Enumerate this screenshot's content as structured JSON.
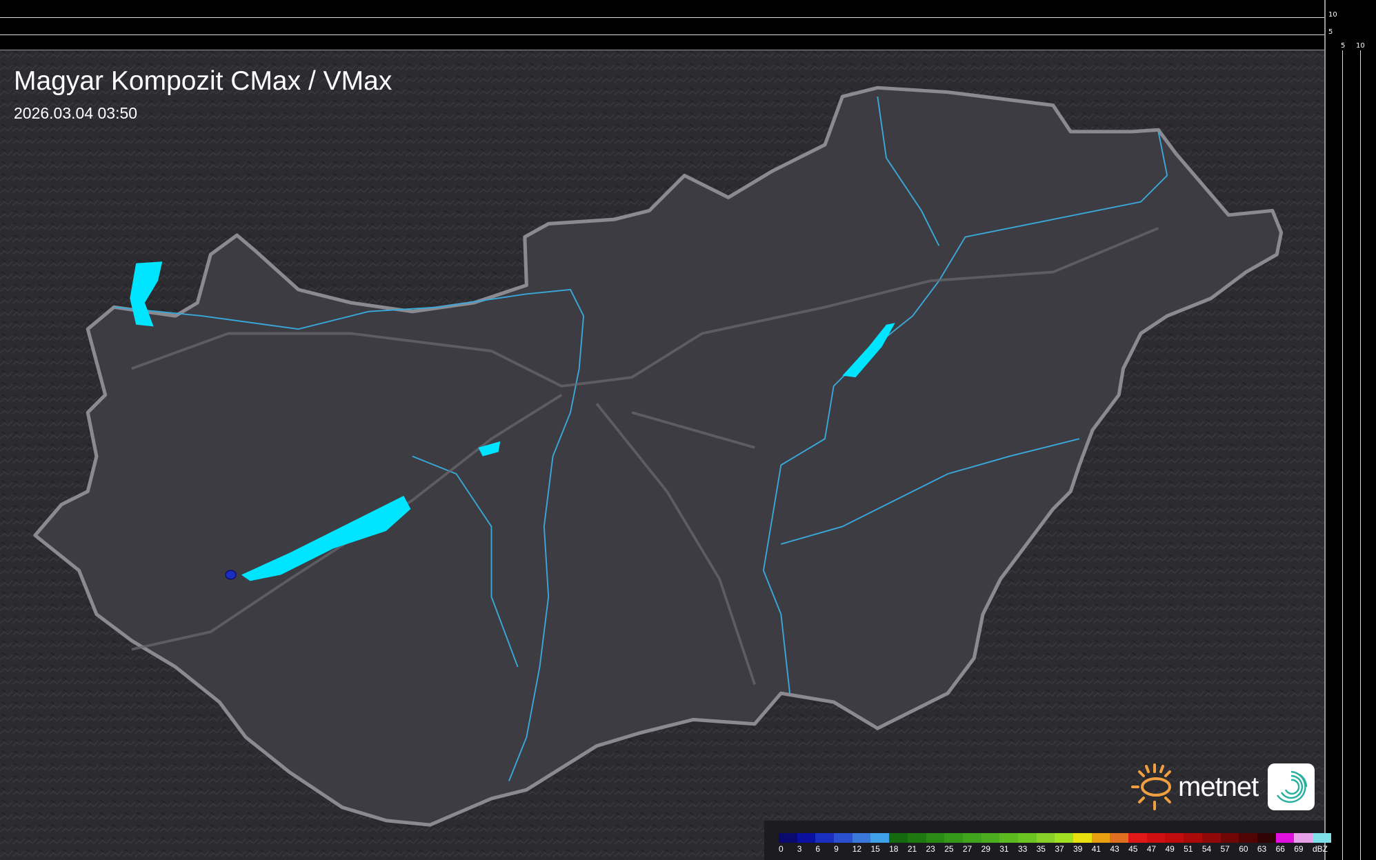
{
  "title": "Magyar Kompozit CMax / VMax",
  "timestamp": "2026.03.04 03:50",
  "side_axis": {
    "top_ticks": [
      "10",
      "5"
    ],
    "bottom_ticks": [
      "5",
      "10"
    ]
  },
  "legend": {
    "unit": "dBZ",
    "labels": [
      "0",
      "3",
      "6",
      "9",
      "12",
      "15",
      "18",
      "21",
      "23",
      "25",
      "27",
      "29",
      "31",
      "33",
      "35",
      "37",
      "39",
      "41",
      "43",
      "45",
      "47",
      "49",
      "51",
      "54",
      "57",
      "60",
      "63",
      "66",
      "69"
    ],
    "colors": [
      "#0a0a6e",
      "#0a10a0",
      "#1a2ec0",
      "#2a50d0",
      "#3a78dc",
      "#40a0e8",
      "#156a10",
      "#1e7a10",
      "#2a8a14",
      "#349818",
      "#40a41c",
      "#4cae1e",
      "#5cba20",
      "#6cc422",
      "#88d028",
      "#a0e020",
      "#e8e010",
      "#e8a010",
      "#e07020",
      "#e01818",
      "#d01010",
      "#c00c0c",
      "#aa0a0a",
      "#900808",
      "#700606",
      "#500404",
      "#300404",
      "#e010e0",
      "#e8a0e8",
      "#80e0e8"
    ]
  },
  "brand": {
    "name": "metnet",
    "sun_color": "#f0a040"
  },
  "colors": {
    "background": "#2a2a2e",
    "country": "#3c3c42",
    "border": "#8a8a90",
    "water": "#00e5ff",
    "rivers": "#3aa8d8"
  }
}
